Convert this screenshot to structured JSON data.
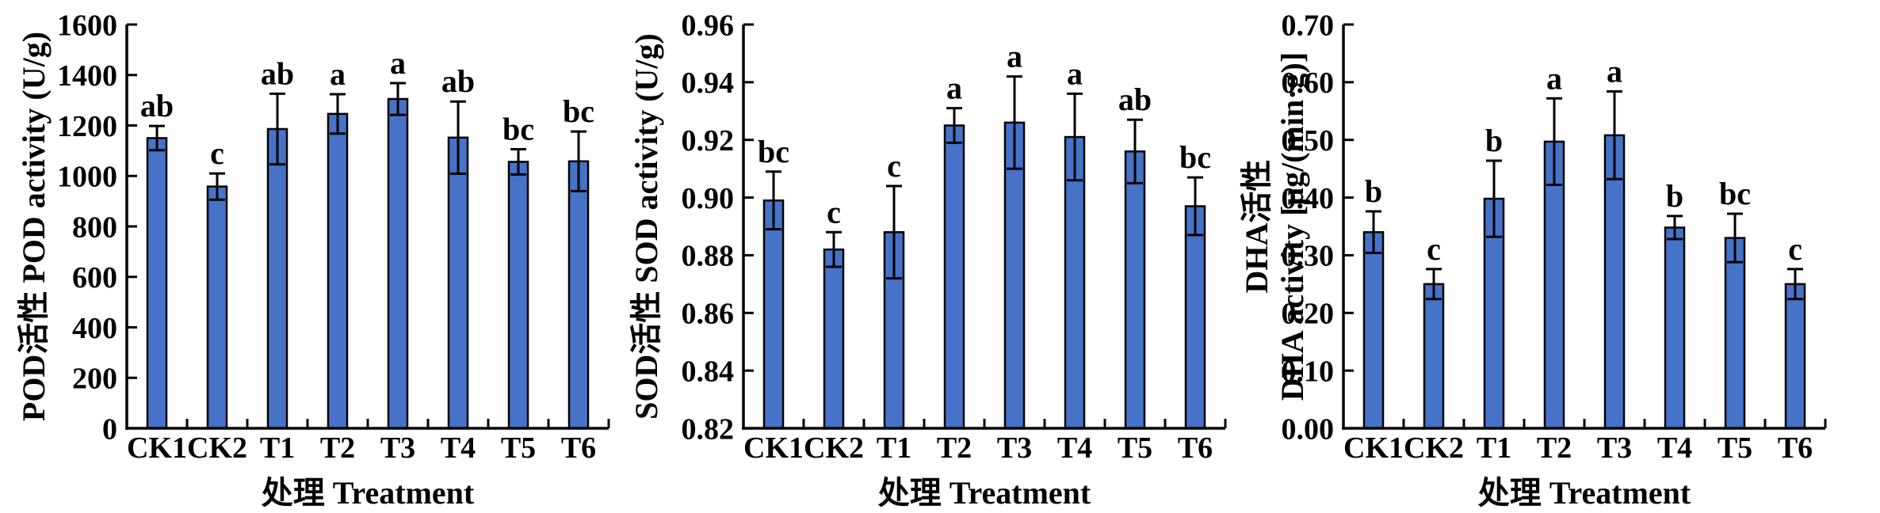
{
  "figure": {
    "background": "#ffffff",
    "bar_fill": "#4673C8",
    "bar_stroke": "#000000",
    "axis_color": "#000000",
    "text_color": "#000000"
  },
  "chart_data": [
    {
      "type": "bar",
      "id": "pod",
      "ylabel_lines": [
        "POD活性 POD activity (U/g)"
      ],
      "xlabel": "处理 Treatment",
      "categories": [
        "CK1",
        "CK2",
        "T1",
        "T2",
        "T3",
        "T4",
        "T5",
        "T6"
      ],
      "values": [
        1150,
        958,
        1186,
        1246,
        1305,
        1152,
        1056,
        1058
      ],
      "errors": [
        48,
        52,
        140,
        78,
        63,
        143,
        50,
        118
      ],
      "sig_letters": [
        "ab",
        "c",
        "ab",
        "a",
        "a",
        "ab",
        "bc",
        "bc"
      ],
      "ylim": [
        0,
        1600
      ],
      "ytick_step": 200,
      "ytick_decimals": 0,
      "grid": false,
      "legend": null
    },
    {
      "type": "bar",
      "id": "sod",
      "ylabel_lines": [
        "SOD活性 SOD activity (U/g)"
      ],
      "xlabel": "处理 Treatment",
      "categories": [
        "CK1",
        "CK2",
        "T1",
        "T2",
        "T3",
        "T4",
        "T5",
        "T6"
      ],
      "values": [
        0.899,
        0.882,
        0.888,
        0.925,
        0.926,
        0.921,
        0.916,
        0.897
      ],
      "errors": [
        0.01,
        0.006,
        0.016,
        0.006,
        0.016,
        0.015,
        0.011,
        0.01
      ],
      "sig_letters": [
        "bc",
        "c",
        "c",
        "a",
        "a",
        "a",
        "ab",
        "bc"
      ],
      "ylim": [
        0.82,
        0.96
      ],
      "ytick_step": 0.02,
      "ytick_decimals": 2,
      "grid": false,
      "legend": null
    },
    {
      "type": "bar",
      "id": "dha",
      "ylabel_lines": [
        "DHA活性",
        "DHA activity [μg/(min·g)]"
      ],
      "xlabel": "处理 Treatment",
      "categories": [
        "CK1",
        "CK2",
        "T1",
        "T2",
        "T3",
        "T4",
        "T5",
        "T6"
      ],
      "values": [
        0.34,
        0.25,
        0.398,
        0.497,
        0.508,
        0.348,
        0.33,
        0.25
      ],
      "errors": [
        0.036,
        0.026,
        0.066,
        0.075,
        0.076,
        0.02,
        0.042,
        0.026
      ],
      "sig_letters": [
        "b",
        "c",
        "b",
        "a",
        "a",
        "b",
        "bc",
        "c"
      ],
      "ylim": [
        0.0,
        0.7
      ],
      "ytick_step": 0.1,
      "ytick_decimals": 2,
      "grid": false,
      "legend": null
    }
  ]
}
